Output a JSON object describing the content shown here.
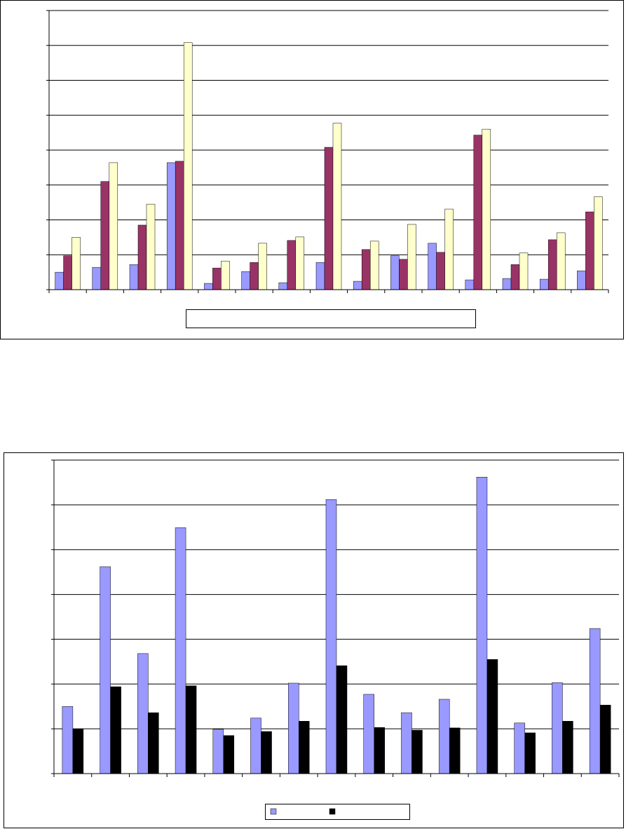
{
  "chart_data": [
    {
      "type": "bar",
      "categories": [
        null,
        null,
        null,
        null,
        null,
        null,
        null,
        null,
        null,
        null,
        null,
        null,
        null,
        null,
        null
      ],
      "series": [
        {
          "color": "#9999ff",
          "values": [
            0.5,
            0.64,
            0.72,
            3.64,
            0.18,
            0.52,
            0.2,
            0.78,
            0.24,
            0.97,
            1.33,
            0.28,
            0.32,
            0.3,
            0.54
          ]
        },
        {
          "color": "#993366",
          "values": [
            0.97,
            3.1,
            1.85,
            3.68,
            0.62,
            0.78,
            1.41,
            4.08,
            1.15,
            0.87,
            1.07,
            4.43,
            0.72,
            1.43,
            2.23
          ]
        },
        {
          "color": "#ffffcc",
          "values": [
            1.5,
            3.64,
            2.45,
            7.08,
            0.82,
            1.33,
            1.51,
            4.77,
            1.39,
            1.87,
            2.31,
            4.6,
            1.05,
            1.63,
            2.66
          ]
        }
      ],
      "ylim": [
        0,
        8
      ],
      "yticks": [
        0,
        1,
        2,
        3,
        4,
        5,
        6,
        7,
        8
      ],
      "grid": true,
      "legend": false
    },
    {
      "type": "bar",
      "categories": [
        null,
        null,
        null,
        null,
        null,
        null,
        null,
        null,
        null,
        null,
        null,
        null,
        null,
        null,
        null
      ],
      "series": [
        {
          "color": "#9999ff",
          "values": [
            1.5,
            4.62,
            2.68,
            5.49,
            0.99,
            1.24,
            2.02,
            6.12,
            1.77,
            1.36,
            1.66,
            6.62,
            1.13,
            2.03,
            3.24
          ]
        },
        {
          "color": "#000000",
          "values": [
            0.99,
            1.94,
            1.36,
            1.96,
            0.85,
            0.94,
            1.17,
            2.41,
            1.03,
            0.97,
            1.02,
            2.55,
            0.91,
            1.17,
            1.53
          ]
        }
      ],
      "ylim": [
        0,
        7
      ],
      "yticks": [
        0,
        1,
        2,
        3,
        4,
        5,
        6,
        7
      ],
      "grid": true,
      "legend": true
    }
  ]
}
